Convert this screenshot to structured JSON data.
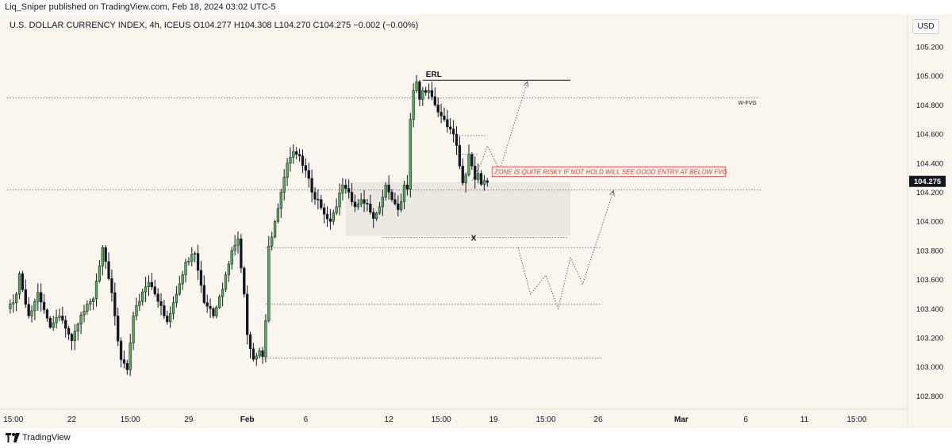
{
  "header": {
    "publisher": "Liq_Sniper published on TradingView.com, Feb 18, 2024 03:02 UTC-5"
  },
  "symbol_info": "U.S. DOLLAR CURRENCY INDEX, 4h, ICEUS  O104.277  H104.308  L104.270  C104.275  −0.002 (−0.00%)",
  "currency_button": "USD",
  "brand": {
    "name": "TradingView",
    "icon": "tradingview-logo-icon"
  },
  "colors": {
    "up": "#4caf50",
    "down": "#131722",
    "background": "#faf6ee",
    "annotation_red": "#e53935"
  },
  "chart_data": {
    "type": "candlestick",
    "symbol": "U.S. DOLLAR CURRENCY INDEX",
    "timeframe": "4h",
    "ylim": [
      102.72,
      105.38
    ],
    "y_ticks": [
      102.8,
      103.0,
      103.2,
      103.4,
      103.6,
      103.8,
      104.0,
      104.2,
      104.4,
      104.6,
      104.8,
      105.0,
      105.2
    ],
    "y_tick_labels": [
      "102.800",
      "103.000",
      "103.200",
      "103.400",
      "103.600",
      "103.800",
      "104.000",
      "104.200",
      "104.400",
      "104.600",
      "104.800",
      "105.000",
      "105.200"
    ],
    "x_tick_labels": [
      {
        "bar": 2,
        "label": "15:00"
      },
      {
        "bar": 21,
        "label": "22"
      },
      {
        "bar": 40,
        "label": "15:00"
      },
      {
        "bar": 59,
        "label": "29"
      },
      {
        "bar": 78,
        "label": "Feb"
      },
      {
        "bar": 97,
        "label": "6"
      },
      {
        "bar": 124,
        "label": "12"
      },
      {
        "bar": 141,
        "label": "15:00"
      },
      {
        "bar": 158,
        "label": "19"
      },
      {
        "bar": 175,
        "label": "15:00"
      },
      {
        "bar": 192,
        "label": "26"
      },
      {
        "bar": 219,
        "label": "Mar"
      },
      {
        "bar": 240,
        "label": "6"
      },
      {
        "bar": 259,
        "label": "11"
      },
      {
        "bar": 276,
        "label": "15:00"
      }
    ],
    "waypoints": [
      [
        0,
        103.4
      ],
      [
        3,
        103.5
      ],
      [
        4,
        103.62
      ],
      [
        7,
        103.35
      ],
      [
        10,
        103.5
      ],
      [
        14,
        103.28
      ],
      [
        17,
        103.35
      ],
      [
        21,
        103.18
      ],
      [
        24,
        103.35
      ],
      [
        28,
        103.48
      ],
      [
        30,
        103.7
      ],
      [
        31,
        103.82
      ],
      [
        34,
        103.5
      ],
      [
        37,
        103.05
      ],
      [
        39,
        102.98
      ],
      [
        41,
        103.35
      ],
      [
        43,
        103.45
      ],
      [
        46,
        103.6
      ],
      [
        49,
        103.45
      ],
      [
        52,
        103.3
      ],
      [
        55,
        103.5
      ],
      [
        58,
        103.7
      ],
      [
        61,
        103.78
      ],
      [
        64,
        103.45
      ],
      [
        67,
        103.35
      ],
      [
        70,
        103.55
      ],
      [
        73,
        103.8
      ],
      [
        75,
        103.88
      ],
      [
        77,
        103.5
      ],
      [
        78,
        103.2
      ],
      [
        80,
        103.05
      ],
      [
        82,
        103.1
      ],
      [
        83,
        103.07
      ],
      [
        84,
        103.3
      ],
      [
        85,
        103.83
      ],
      [
        87,
        104.0
      ],
      [
        89,
        104.2
      ],
      [
        91,
        104.4
      ],
      [
        93,
        104.48
      ],
      [
        95,
        104.45
      ],
      [
        97,
        104.35
      ],
      [
        99,
        104.2
      ],
      [
        101,
        104.15
      ],
      [
        103,
        104.05
      ],
      [
        105,
        104.0
      ],
      [
        107,
        104.1
      ],
      [
        109,
        104.25
      ],
      [
        111,
        104.2
      ],
      [
        113,
        104.1
      ],
      [
        115,
        104.15
      ],
      [
        117,
        104.12
      ],
      [
        119,
        104.02
      ],
      [
        121,
        104.1
      ],
      [
        123,
        104.25
      ],
      [
        125,
        104.15
      ],
      [
        127,
        104.08
      ],
      [
        128,
        104.15
      ],
      [
        129,
        104.25
      ],
      [
        130,
        104.2
      ],
      [
        131,
        104.7
      ],
      [
        132,
        104.9
      ],
      [
        133,
        104.96
      ],
      [
        134,
        104.82
      ],
      [
        135,
        104.9
      ],
      [
        136,
        104.88
      ],
      [
        137,
        104.9
      ],
      [
        138,
        104.85
      ],
      [
        140,
        104.75
      ],
      [
        142,
        104.7
      ],
      [
        143,
        104.65
      ],
      [
        145,
        104.6
      ],
      [
        146,
        104.5
      ],
      [
        147,
        104.38
      ],
      [
        148,
        104.27
      ],
      [
        149,
        104.32
      ],
      [
        150,
        104.45
      ],
      [
        151,
        104.38
      ],
      [
        152,
        104.3
      ],
      [
        153,
        104.33
      ],
      [
        154,
        104.25
      ],
      [
        155,
        104.28
      ],
      [
        156,
        104.275
      ]
    ],
    "current_price": 104.275,
    "current_price_label": "104.275",
    "horizontal_levels": [
      {
        "price": 104.85,
        "from_bar": 0,
        "to_bar": 244,
        "style": "dotted",
        "label": "W-FVG"
      },
      {
        "price": 104.97,
        "from_bar": 135,
        "to_bar": 183,
        "style": "solid",
        "label": "ERL"
      },
      {
        "price": 104.59,
        "from_bar": 146,
        "to_bar": 156,
        "style": "dotted"
      },
      {
        "price": 104.46,
        "from_bar": 146,
        "to_bar": 153,
        "style": "dotted"
      },
      {
        "price": 103.89,
        "from_bar": 122,
        "to_bar": 182,
        "style": "dotted",
        "label": "X"
      },
      {
        "price": 103.82,
        "from_bar": 84,
        "to_bar": 193,
        "style": "dotted"
      },
      {
        "price": 103.43,
        "from_bar": 84,
        "to_bar": 193,
        "style": "dotted"
      },
      {
        "price": 103.06,
        "from_bar": 80,
        "to_bar": 193,
        "style": "dotted"
      },
      {
        "price": 104.215,
        "from_bar": 0,
        "to_bar": 245,
        "style": "dotted"
      }
    ],
    "zone": {
      "price_top": 104.27,
      "price_bottom": 103.9,
      "from_bar": 110,
      "to_bar": 183
    },
    "annotations": [
      {
        "text": "ZONE IS QUITE RISKY IF NOT HOLD WILL SEE GOOD ENTRY AT BELOW FVG",
        "bar": 156,
        "price": 104.33
      }
    ],
    "projections": [
      {
        "points": [
          [
            151,
            104.28
          ],
          [
            154,
            104.4
          ],
          [
            156,
            104.52
          ],
          [
            160,
            104.35
          ],
          [
            169,
            104.96
          ]
        ],
        "arrow": true
      },
      {
        "points": [
          [
            166,
            103.82
          ],
          [
            170,
            103.5
          ],
          [
            175,
            103.63
          ],
          [
            179,
            103.4
          ],
          [
            183,
            103.75
          ],
          [
            187,
            103.57
          ],
          [
            197,
            104.21
          ]
        ],
        "arrow": true
      }
    ]
  }
}
